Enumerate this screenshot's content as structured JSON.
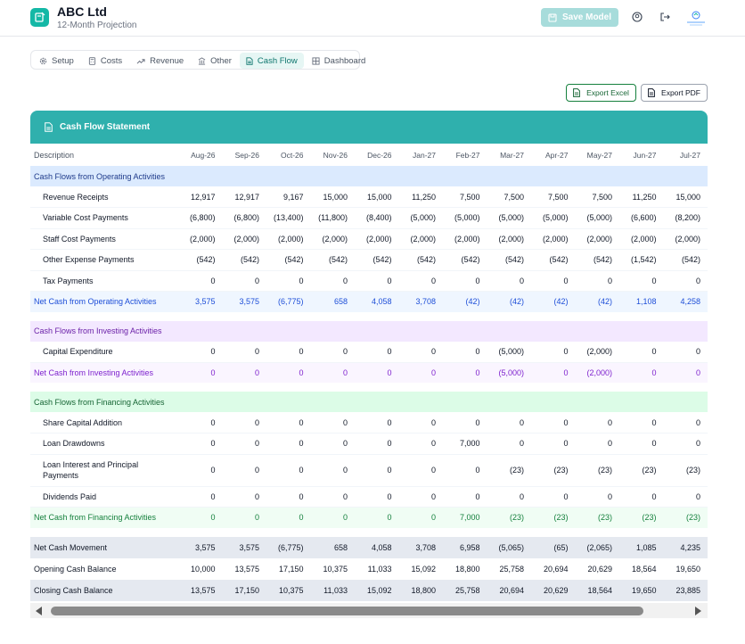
{
  "header": {
    "title": "ABC Ltd",
    "subtitle": "12-Month Projection",
    "save_label": "Save Model"
  },
  "tabs": [
    {
      "label": "Setup",
      "icon": "gear-icon"
    },
    {
      "label": "Costs",
      "icon": "calculator-icon"
    },
    {
      "label": "Revenue",
      "icon": "trend-up-icon"
    },
    {
      "label": "Other",
      "icon": "bank-icon"
    },
    {
      "label": "Cash Flow",
      "icon": "document-icon",
      "active": true
    },
    {
      "label": "Dashboard",
      "icon": "chart-grid-icon"
    }
  ],
  "exports": {
    "excel_label": "Export Excel",
    "pdf_label": "Export PDF"
  },
  "panel": {
    "title": "Cash Flow Statement"
  },
  "table": {
    "desc_header": "Description",
    "months": [
      "Aug-26",
      "Sep-26",
      "Oct-26",
      "Nov-26",
      "Dec-26",
      "Jan-27",
      "Feb-27",
      "Mar-27",
      "Apr-27",
      "May-27",
      "Jun-27",
      "Jul-27"
    ],
    "rows": [
      {
        "type": "sec-op",
        "label": "Cash Flows from Operating Activities"
      },
      {
        "type": "item",
        "label": "Revenue Receipts",
        "values": [
          "12,917",
          "12,917",
          "9,167",
          "15,000",
          "15,000",
          "11,250",
          "7,500",
          "7,500",
          "7,500",
          "7,500",
          "11,250",
          "15,000"
        ]
      },
      {
        "type": "item",
        "label": "Variable Cost Payments",
        "values": [
          "(6,800)",
          "(6,800)",
          "(13,400)",
          "(11,800)",
          "(8,400)",
          "(5,000)",
          "(5,000)",
          "(5,000)",
          "(5,000)",
          "(5,000)",
          "(6,600)",
          "(8,200)"
        ]
      },
      {
        "type": "item",
        "label": "Staff Cost Payments",
        "values": [
          "(2,000)",
          "(2,000)",
          "(2,000)",
          "(2,000)",
          "(2,000)",
          "(2,000)",
          "(2,000)",
          "(2,000)",
          "(2,000)",
          "(2,000)",
          "(2,000)",
          "(2,000)"
        ]
      },
      {
        "type": "item",
        "label": "Other Expense Payments",
        "values": [
          "(542)",
          "(542)",
          "(542)",
          "(542)",
          "(542)",
          "(542)",
          "(542)",
          "(542)",
          "(542)",
          "(542)",
          "(1,542)",
          "(542)"
        ]
      },
      {
        "type": "item",
        "label": "Tax Payments",
        "values": [
          "0",
          "0",
          "0",
          "0",
          "0",
          "0",
          "0",
          "0",
          "0",
          "0",
          "0",
          "0"
        ]
      },
      {
        "type": "net-op",
        "label": "Net Cash from Operating Activities",
        "values": [
          "3,575",
          "3,575",
          "(6,775)",
          "658",
          "4,058",
          "3,708",
          "(42)",
          "(42)",
          "(42)",
          "(42)",
          "1,108",
          "4,258"
        ]
      },
      {
        "type": "gap"
      },
      {
        "type": "sec-inv",
        "label": "Cash Flows from Investing Activities"
      },
      {
        "type": "item",
        "label": "Capital Expenditure",
        "values": [
          "0",
          "0",
          "0",
          "0",
          "0",
          "0",
          "0",
          "(5,000)",
          "0",
          "(2,000)",
          "0",
          "0"
        ]
      },
      {
        "type": "net-inv",
        "label": "Net Cash from Investing Activities",
        "values": [
          "0",
          "0",
          "0",
          "0",
          "0",
          "0",
          "0",
          "(5,000)",
          "0",
          "(2,000)",
          "0",
          "0"
        ]
      },
      {
        "type": "gap"
      },
      {
        "type": "sec-fin",
        "label": "Cash Flows from Financing Activities"
      },
      {
        "type": "item",
        "label": "Share Capital Addition",
        "values": [
          "0",
          "0",
          "0",
          "0",
          "0",
          "0",
          "0",
          "0",
          "0",
          "0",
          "0",
          "0"
        ]
      },
      {
        "type": "item",
        "label": "Loan Drawdowns",
        "values": [
          "0",
          "0",
          "0",
          "0",
          "0",
          "0",
          "7,000",
          "0",
          "0",
          "0",
          "0",
          "0"
        ]
      },
      {
        "type": "item-tall",
        "label": "Loan Interest and Principal",
        "label2": "Payments",
        "values": [
          "0",
          "0",
          "0",
          "0",
          "0",
          "0",
          "0",
          "(23)",
          "(23)",
          "(23)",
          "(23)",
          "(23)"
        ]
      },
      {
        "type": "item",
        "label": "Dividends Paid",
        "values": [
          "0",
          "0",
          "0",
          "0",
          "0",
          "0",
          "0",
          "0",
          "0",
          "0",
          "0",
          "0"
        ]
      },
      {
        "type": "net-fin",
        "label": "Net Cash from Financing Activities",
        "values": [
          "0",
          "0",
          "0",
          "0",
          "0",
          "0",
          "7,000",
          "(23)",
          "(23)",
          "(23)",
          "(23)",
          "(23)"
        ]
      },
      {
        "type": "gap"
      },
      {
        "type": "summ",
        "label": "Net Cash Movement",
        "values": [
          "3,575",
          "3,575",
          "(6,775)",
          "658",
          "4,058",
          "3,708",
          "6,958",
          "(5,065)",
          "(65)",
          "(2,065)",
          "1,085",
          "4,235"
        ]
      },
      {
        "type": "summ-w",
        "label": "Opening Cash Balance",
        "values": [
          "10,000",
          "13,575",
          "17,150",
          "10,375",
          "11,033",
          "15,092",
          "18,800",
          "25,758",
          "20,694",
          "20,629",
          "18,564",
          "19,650"
        ]
      },
      {
        "type": "summ",
        "label": "Closing Cash Balance",
        "values": [
          "13,575",
          "17,150",
          "10,375",
          "11,033",
          "15,092",
          "18,800",
          "25,758",
          "20,694",
          "20,629",
          "18,564",
          "19,650",
          "23,885"
        ]
      }
    ]
  },
  "colors": {
    "accent": "#2fb0ad",
    "save_disabled": "#a7dcdb"
  }
}
